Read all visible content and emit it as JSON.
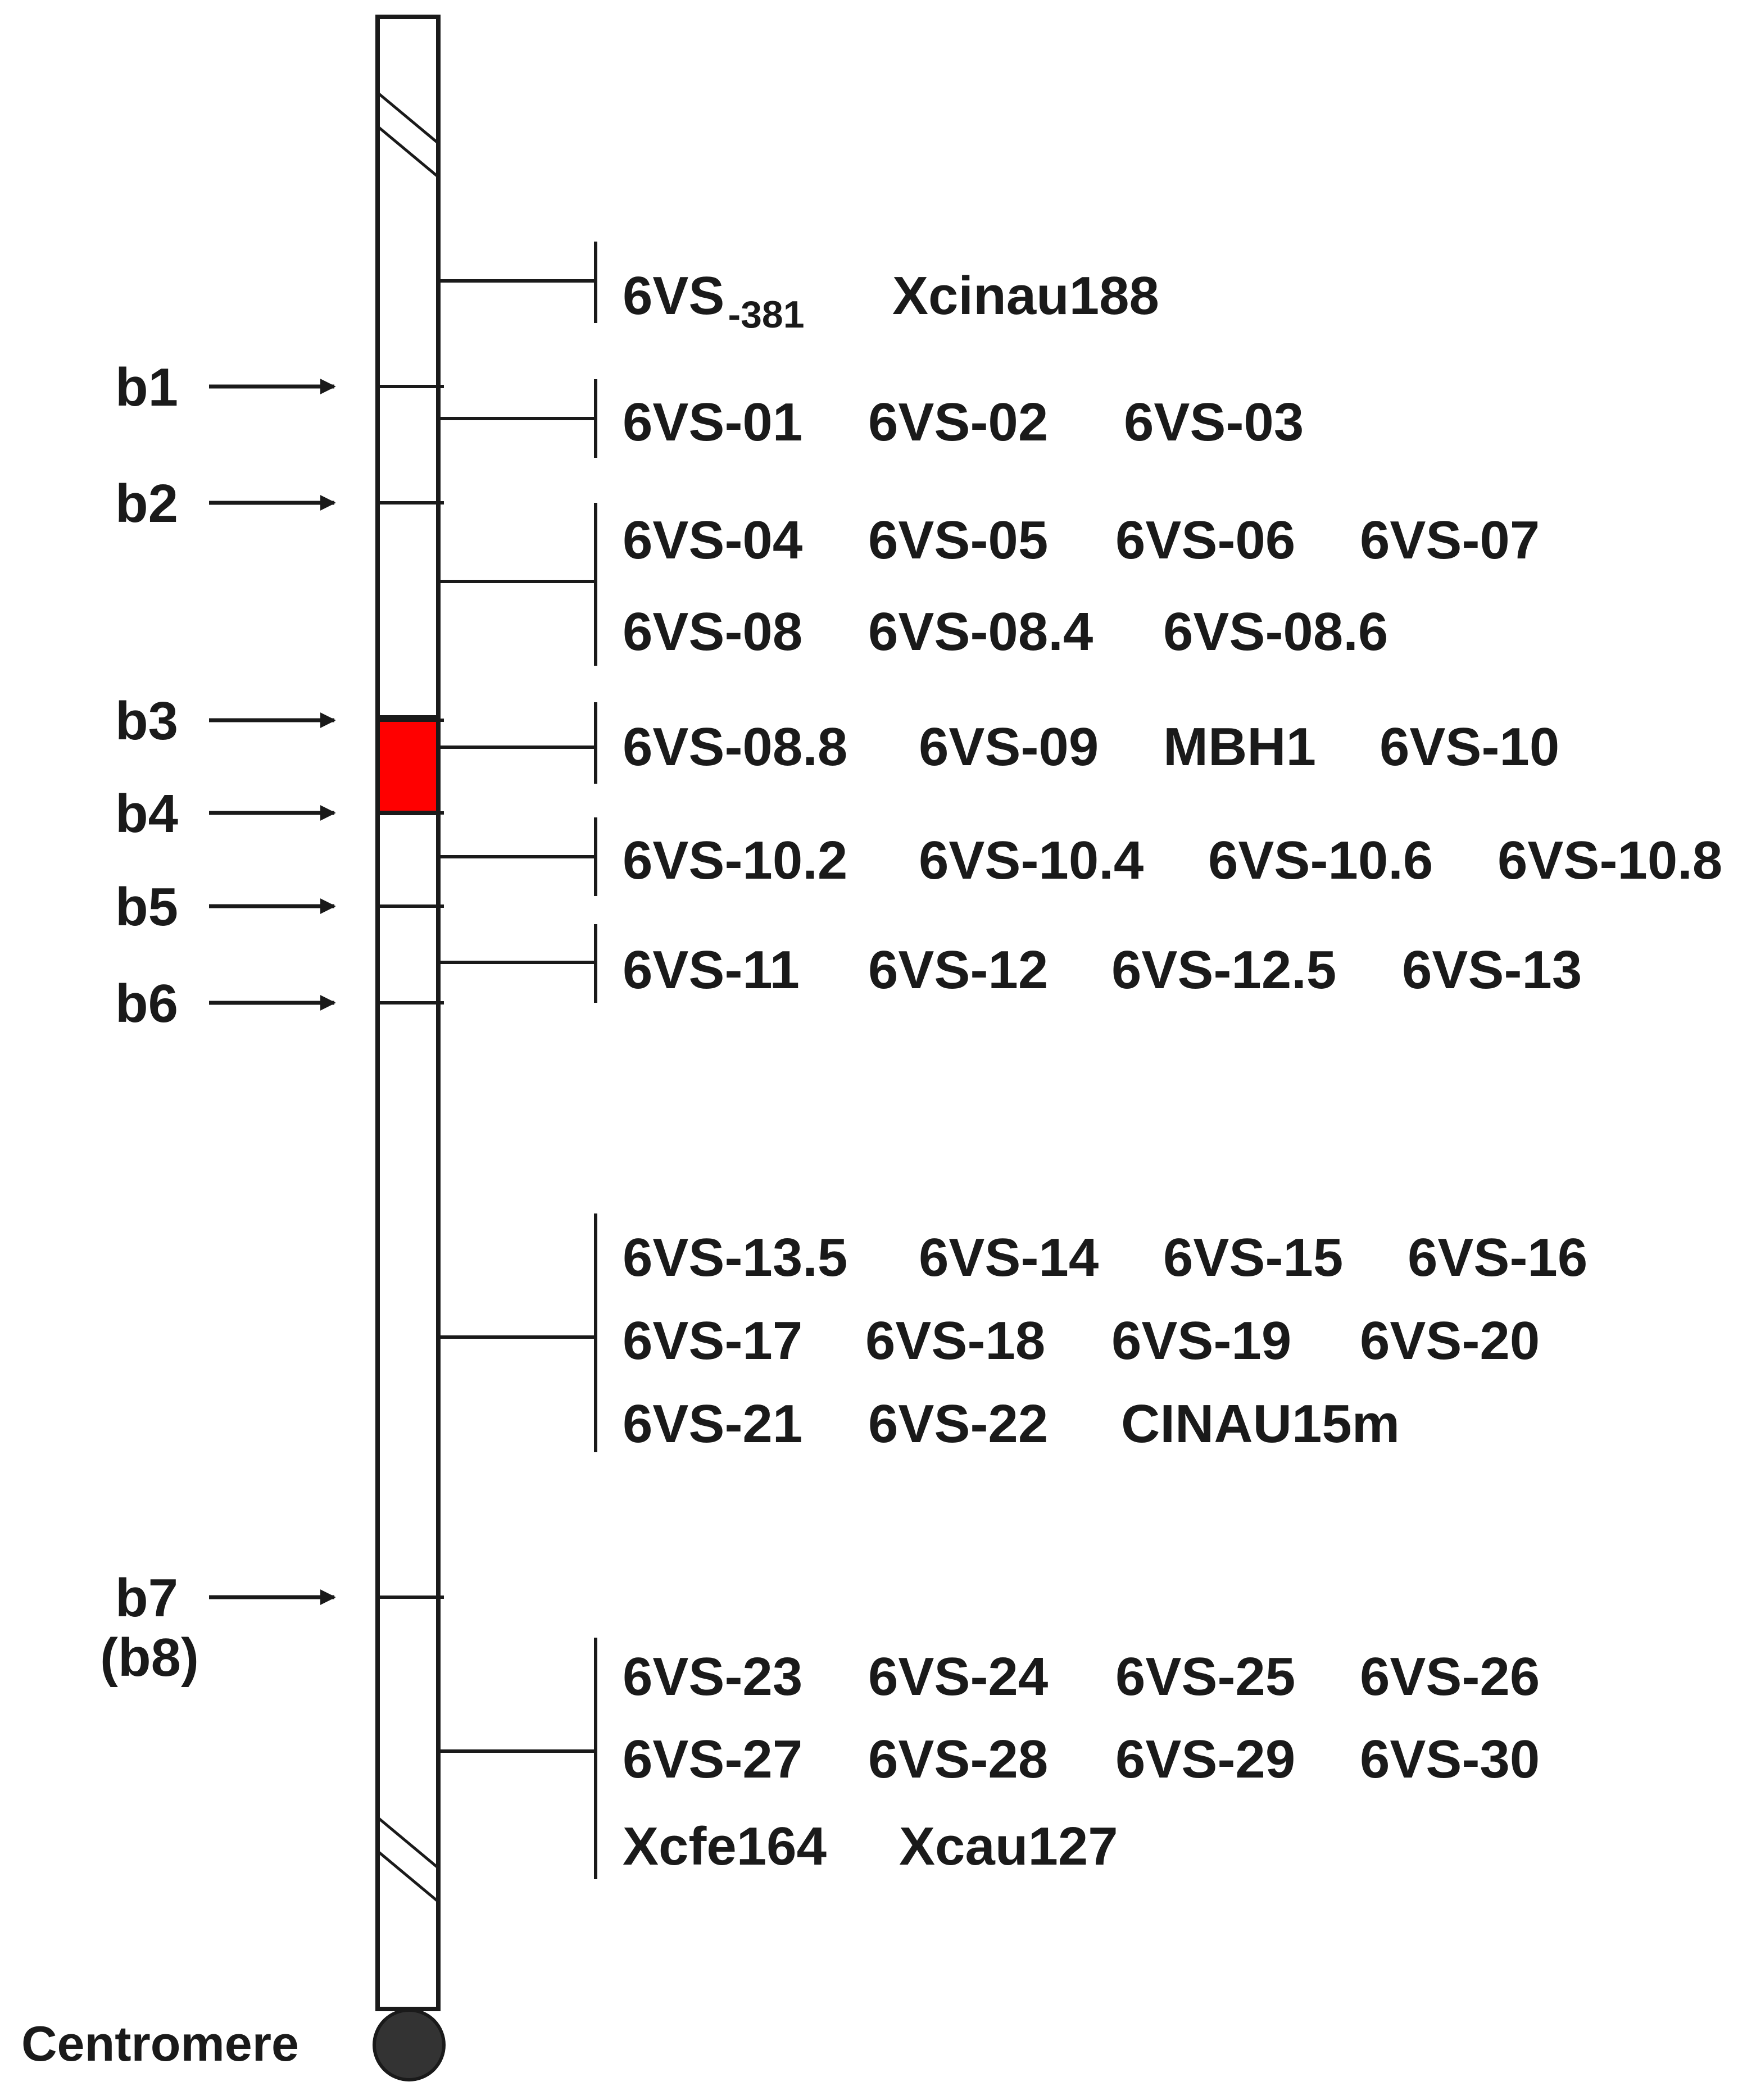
{
  "colors": {
    "line": "#1a1a1a",
    "highlight_bin": "#ff0000",
    "centromere": "#333333",
    "background": "#ffffff"
  },
  "breakpoints": [
    {
      "label": "b1"
    },
    {
      "label": "b2"
    },
    {
      "label": "b3"
    },
    {
      "label": "b4"
    },
    {
      "label": "b5"
    },
    {
      "label": "b6"
    },
    {
      "label": "b7",
      "sublabel": "(b8)"
    }
  ],
  "centromere_label": "Centromere",
  "highlighted_bin": {
    "from": "b3",
    "to": "b4",
    "marker": "MBH1"
  },
  "marker_groups": [
    {
      "rows": [
        [
          "6VS-381",
          "Xcinau188"
        ]
      ]
    },
    {
      "rows": [
        [
          "6VS-01",
          "6VS-02",
          "6VS-03"
        ]
      ]
    },
    {
      "rows": [
        [
          "6VS-04",
          "6VS-05",
          "6VS-06",
          "6VS-07"
        ],
        [
          "6VS-08",
          "6VS-08.4",
          "6VS-08.6"
        ]
      ]
    },
    {
      "rows": [
        [
          "6VS-08.8",
          "6VS-09",
          "MBH1",
          "6VS-10"
        ]
      ]
    },
    {
      "rows": [
        [
          "6VS-10.2",
          "6VS-10.4",
          "6VS-10.6",
          "6VS-10.8"
        ]
      ]
    },
    {
      "rows": [
        [
          "6VS-11",
          "6VS-12",
          "6VS-12.5",
          "6VS-13"
        ]
      ]
    },
    {
      "rows": [
        [
          "6VS-13.5",
          "6VS-14",
          "6VS-15",
          "6VS-16"
        ],
        [
          "6VS-17",
          "6VS-18",
          "6VS-19",
          "6VS-20"
        ],
        [
          "6VS-21",
          "6VS-22",
          "CINAU15m"
        ]
      ]
    },
    {
      "rows": [
        [
          "6VS-23",
          "6VS-24",
          "6VS-25",
          "6VS-26"
        ],
        [
          "6VS-27",
          "6VS-28",
          "6VS-29",
          "6VS-30"
        ],
        [
          "Xcfe164",
          "Xcau127"
        ]
      ]
    }
  ]
}
